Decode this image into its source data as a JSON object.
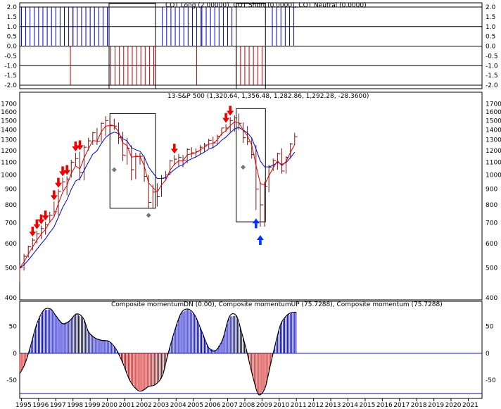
{
  "colors": {
    "cot_long": "#0000cc",
    "cot_short": "#cc0000",
    "price_bar": "#7a1010",
    "ma_fast": "#e00000",
    "ma_slow": "#0000cc",
    "sell_arrow": "#ee0000",
    "buy_arrow": "#0033ff",
    "momentum_line": "#000000",
    "zero_line": "#0000cc",
    "frame": "#000000"
  },
  "chart_data": [
    {
      "panel": "cot",
      "type": "bar",
      "title": "COT Long (2.00000), COT Short (0.0000), COT Neutral (0.0000)",
      "ylim": [
        -2.0,
        2.0
      ],
      "yticks": [
        "2.0",
        "1.5",
        "1.0",
        "0.5",
        "0.0",
        "-0.5",
        "-1.0",
        "-1.5",
        "-2.0"
      ],
      "long_segments": [
        [
          1995.1,
          1998.1
        ],
        [
          1998.1,
          2000.2
        ],
        [
          2003.3,
          2005.6
        ],
        [
          2005.6,
          2007.5
        ],
        [
          2009.7,
          2011.1
        ]
      ],
      "short_segments": [
        [
          1997.95,
          1998.0
        ],
        [
          2000.3,
          2002.9
        ],
        [
          2005.3,
          2005.35
        ],
        [
          2007.6,
          2009.3
        ]
      ],
      "bar_step_years": 0.25,
      "boxes": [
        [
          2000.2,
          2002.9
        ],
        [
          2007.6,
          2009.3
        ]
      ]
    },
    {
      "panel": "price",
      "type": "line",
      "title": "13-S&P 500 (1,320.64, 1,356.48, 1,282.86, 1,292.28, -28.3600)",
      "y_scale": "log",
      "ylim": [
        400,
        1750
      ],
      "yticks": [
        400,
        500,
        600,
        700,
        800,
        900,
        1000,
        1100,
        1200,
        1300,
        1400,
        1500,
        1600,
        1700
      ],
      "quarters": [
        1995.0,
        1995.25,
        1995.5,
        1995.75,
        1996.0,
        1996.25,
        1996.5,
        1996.75,
        1997.0,
        1997.25,
        1997.5,
        1997.75,
        1998.0,
        1998.25,
        1998.5,
        1998.75,
        1999.0,
        1999.25,
        1999.5,
        1999.75,
        2000.0,
        2000.25,
        2000.5,
        2000.75,
        2001.0,
        2001.25,
        2001.5,
        2001.75,
        2002.0,
        2002.25,
        2002.5,
        2002.75,
        2003.0,
        2003.25,
        2003.5,
        2003.75,
        2004.0,
        2004.25,
        2004.5,
        2004.75,
        2005.0,
        2005.25,
        2005.5,
        2005.75,
        2006.0,
        2006.25,
        2006.5,
        2006.75,
        2007.0,
        2007.25,
        2007.5,
        2007.75,
        2008.0,
        2008.25,
        2008.5,
        2008.75,
        2009.0,
        2009.25,
        2009.5,
        2009.75,
        2010.0,
        2010.25,
        2010.5,
        2010.75,
        2011.0
      ],
      "close": [
        500,
        545,
        585,
        615,
        645,
        670,
        690,
        740,
        760,
        885,
        950,
        970,
        1100,
        1130,
        1020,
        1230,
        1290,
        1370,
        1285,
        1470,
        1500,
        1450,
        1440,
        1320,
        1160,
        1220,
        1040,
        1150,
        1150,
        990,
        815,
        880,
        850,
        975,
        1000,
        1110,
        1125,
        1140,
        1115,
        1210,
        1180,
        1190,
        1230,
        1250,
        1295,
        1270,
        1335,
        1420,
        1420,
        1500,
        1530,
        1470,
        1320,
        1280,
        1165,
        900,
        800,
        920,
        1060,
        1115,
        1170,
        1030,
        1140,
        1260,
        1330
      ],
      "high": [
        510,
        555,
        590,
        625,
        660,
        685,
        705,
        760,
        820,
        900,
        980,
        990,
        1120,
        1180,
        1190,
        1250,
        1320,
        1380,
        1420,
        1480,
        1550,
        1530,
        1520,
        1480,
        1380,
        1320,
        1250,
        1180,
        1180,
        1150,
        1000,
        930,
        940,
        1000,
        1030,
        1120,
        1160,
        1170,
        1160,
        1220,
        1230,
        1220,
        1250,
        1270,
        1310,
        1330,
        1350,
        1420,
        1460,
        1540,
        1560,
        1580,
        1480,
        1440,
        1320,
        1250,
        950,
        950,
        1080,
        1130,
        1180,
        1220,
        1150,
        1270,
        1370
      ],
      "low": [
        450,
        490,
        540,
        570,
        600,
        620,
        640,
        700,
        730,
        740,
        890,
        860,
        980,
        1070,
        960,
        960,
        1200,
        1250,
        1250,
        1280,
        1340,
        1350,
        1400,
        1260,
        1110,
        1080,
        960,
        970,
        1080,
        950,
        780,
        780,
        790,
        850,
        960,
        1000,
        1080,
        1070,
        1060,
        1090,
        1140,
        1140,
        1170,
        1190,
        1220,
        1220,
        1250,
        1340,
        1380,
        1380,
        1380,
        1400,
        1270,
        1250,
        1130,
        770,
        680,
        680,
        880,
        1030,
        1040,
        1010,
        1010,
        1130,
        1250
      ],
      "sell_arrow_quarters": [
        1995.75,
        1996.0,
        1996.25,
        1996.5,
        1997.0,
        1997.25,
        1997.5,
        1997.75,
        1998.25,
        1998.5,
        2004.0,
        2007.0,
        2007.25
      ],
      "buy_arrow_quarters": [
        2008.75,
        2009.0
      ],
      "diamonds": [
        [
          2000.5,
          1040
        ],
        [
          2002.5,
          740
        ],
        [
          2008.0,
          1060
        ]
      ],
      "boxes": [
        [
          2000.25,
          2002.9,
          780,
          1580
        ],
        [
          2007.6,
          2009.3,
          705,
          1640
        ]
      ]
    },
    {
      "panel": "momentum",
      "type": "line",
      "title": "Composite momentumDN (0.00), Composite momentumUP (75.7288), Composite momentum (75.7288)",
      "ylim": [
        -80,
        90
      ],
      "yticks": [
        50,
        0,
        -50
      ],
      "points": [
        [
          1995.0,
          -38
        ],
        [
          1995.3,
          -20
        ],
        [
          1995.6,
          10
        ],
        [
          1996.0,
          55
        ],
        [
          1996.4,
          80
        ],
        [
          1996.8,
          82
        ],
        [
          1997.1,
          70
        ],
        [
          1997.5,
          55
        ],
        [
          1997.9,
          60
        ],
        [
          1998.3,
          73
        ],
        [
          1998.7,
          65
        ],
        [
          1999.0,
          40
        ],
        [
          1999.4,
          28
        ],
        [
          1999.8,
          24
        ],
        [
          2000.2,
          22
        ],
        [
          2000.6,
          8
        ],
        [
          2001.0,
          -18
        ],
        [
          2001.4,
          -50
        ],
        [
          2001.8,
          -67
        ],
        [
          2002.1,
          -70
        ],
        [
          2002.5,
          -62
        ],
        [
          2002.9,
          -58
        ],
        [
          2003.3,
          -42
        ],
        [
          2003.6,
          -5
        ],
        [
          2004.0,
          40
        ],
        [
          2004.4,
          75
        ],
        [
          2004.8,
          82
        ],
        [
          2005.2,
          70
        ],
        [
          2005.6,
          40
        ],
        [
          2006.0,
          10
        ],
        [
          2006.4,
          5
        ],
        [
          2006.8,
          25
        ],
        [
          2007.2,
          68
        ],
        [
          2007.6,
          70
        ],
        [
          2007.9,
          40
        ],
        [
          2008.2,
          5
        ],
        [
          2008.5,
          -35
        ],
        [
          2008.8,
          -70
        ],
        [
          2009.0,
          -77
        ],
        [
          2009.3,
          -62
        ],
        [
          2009.6,
          -20
        ],
        [
          2009.9,
          20
        ],
        [
          2010.2,
          55
        ],
        [
          2010.6,
          72
        ],
        [
          2010.9,
          76
        ],
        [
          2011.1,
          76
        ]
      ],
      "bars_until": 2011.1
    }
  ],
  "x_axis": {
    "labels": [
      "1995",
      "1996",
      "1997",
      "1998",
      "1999",
      "2000",
      "2001",
      "2002",
      "2003",
      "2004",
      "2005",
      "2006",
      "2007",
      "2008",
      "2009",
      "2010",
      "2011",
      "2012",
      "2013",
      "2014",
      "2015",
      "2016",
      "2017",
      "2018",
      "2019",
      "2020",
      "2021"
    ]
  }
}
